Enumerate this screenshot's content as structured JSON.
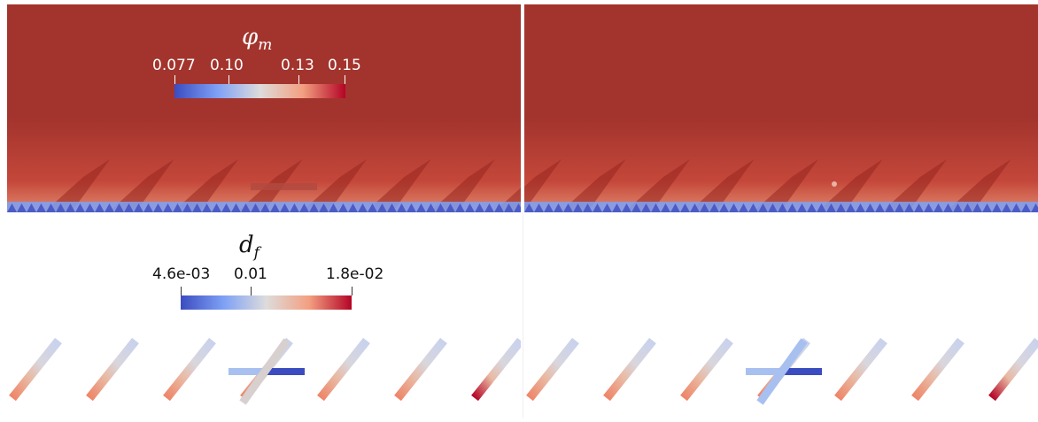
{
  "colorbar_phi": {
    "symbol": "φ",
    "subscript": "m",
    "ticks": [
      "0.077",
      "0.10",
      "0.13",
      "0.15"
    ]
  },
  "colorbar_d": {
    "symbol": "d",
    "subscript": "f",
    "ticks": [
      "4.6e-03",
      "0.01",
      "1.8e-02"
    ]
  },
  "colors": {
    "field_dark_red": "#a3342d",
    "colormap": [
      "#3b4cc0",
      "#7ea0f5",
      "#dddcdc",
      "#f3a081",
      "#b40426"
    ]
  }
}
